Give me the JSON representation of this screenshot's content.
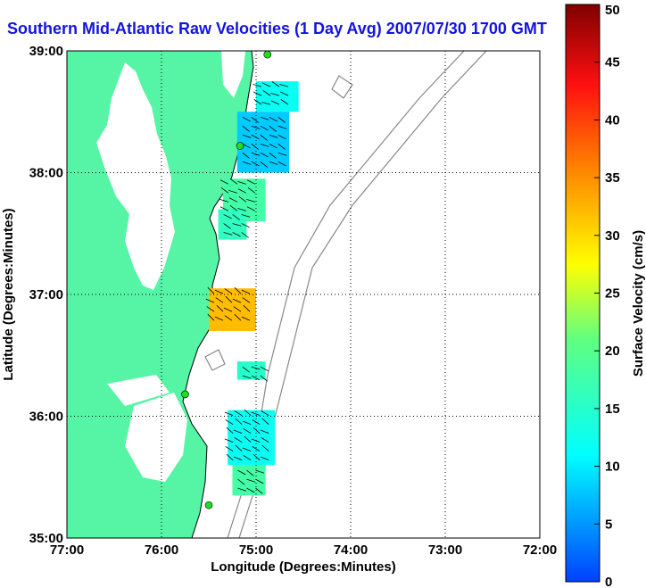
{
  "title": "Southern Mid-Atlantic Raw Velocities (1 Day Avg) 2007/07/30 1700 GMT",
  "map": {
    "xlabel": "Longitude (Degrees:Minutes)",
    "ylabel": "Latitude (Degrees:Minutes)",
    "lon_range": [
      -77,
      -72
    ],
    "lat_range": [
      35,
      39
    ],
    "x_ticks": [
      {
        "lon": -77,
        "label": "77:00"
      },
      {
        "lon": -76,
        "label": "76:00"
      },
      {
        "lon": -75,
        "label": "75:00"
      },
      {
        "lon": -74,
        "label": "74:00"
      },
      {
        "lon": -73,
        "label": "73:00"
      },
      {
        "lon": -72,
        "label": "72:00"
      }
    ],
    "y_ticks": [
      {
        "lat": 39,
        "label": "39:00"
      },
      {
        "lat": 38,
        "label": "38:00"
      },
      {
        "lat": 37,
        "label": "37:00"
      },
      {
        "lat": 36,
        "label": "36:00"
      },
      {
        "lat": 35,
        "label": "35:00"
      }
    ],
    "grid": true,
    "land_color": "#55f5a5",
    "station_color": "#22dd22",
    "stations": [
      {
        "lon": -74.88,
        "lat": 38.97
      },
      {
        "lon": -75.17,
        "lat": 38.22
      },
      {
        "lon": -75.75,
        "lat": 36.18
      },
      {
        "lon": -75.5,
        "lat": 35.27
      }
    ]
  },
  "colorbar": {
    "label": "Surface Velocity (cm/s)",
    "min": 0,
    "max": 50,
    "ticks": [
      "0",
      "5",
      "10",
      "15",
      "20",
      "25",
      "30",
      "35",
      "40",
      "45",
      "50"
    ]
  },
  "chart_data": {
    "type": "heatmap",
    "title": "Southern Mid-Atlantic Raw Velocities (1 Day Avg) 2007/07/30 1700 GMT",
    "xlabel": "Longitude (Degrees:Minutes)",
    "ylabel": "Latitude (Degrees:Minutes)",
    "xlim": [
      -77,
      -72
    ],
    "ylim": [
      35,
      39
    ],
    "value_units": "cm/s",
    "value_range": [
      0,
      50
    ],
    "regions": [
      {
        "lon_range": [
          -75.0,
          -74.55
        ],
        "lat_range": [
          38.5,
          38.75
        ],
        "speed": 12
      },
      {
        "lon_range": [
          -75.2,
          -74.65
        ],
        "lat_range": [
          38.0,
          38.5
        ],
        "speed": 8
      },
      {
        "lon_range": [
          -75.35,
          -74.9
        ],
        "lat_range": [
          37.6,
          37.95
        ],
        "speed": 18
      },
      {
        "lon_range": [
          -75.4,
          -75.1
        ],
        "lat_range": [
          37.45,
          37.7
        ],
        "speed": 16
      },
      {
        "lon_range": [
          -75.5,
          -75.0
        ],
        "lat_range": [
          36.7,
          37.05
        ],
        "speed": 32
      },
      {
        "lon_range": [
          -75.2,
          -74.9
        ],
        "lat_range": [
          36.3,
          36.45
        ],
        "speed": 15
      },
      {
        "lon_range": [
          -75.3,
          -74.8
        ],
        "lat_range": [
          35.6,
          36.05
        ],
        "speed": 12
      },
      {
        "lon_range": [
          -75.25,
          -74.9
        ],
        "lat_range": [
          35.35,
          35.6
        ],
        "speed": 18
      }
    ]
  }
}
